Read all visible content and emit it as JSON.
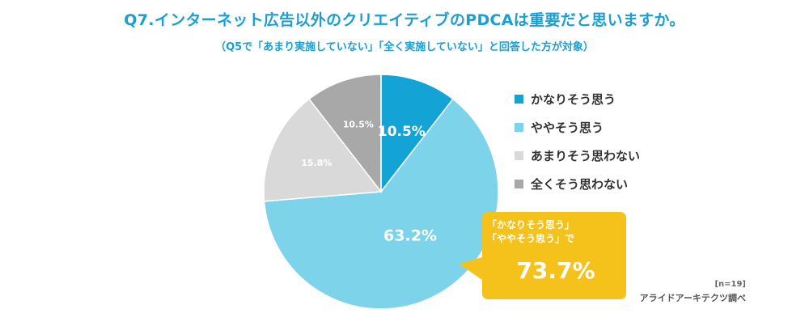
{
  "header": {
    "title": "Q7.インターネット広告以外のクリエイティブのPDCAは重要だと思いますか。",
    "subtitle": "（Q5で「あまり実施していない」「全く実施していない」と回答した方が対象）"
  },
  "chart_data": {
    "type": "pie",
    "title": "Q7.インターネット広告以外のクリエイティブのPDCAは重要だと思いますか。",
    "start": "12 o'clock, clockwise",
    "slices": [
      {
        "label": "かなりそう思う",
        "value": 10.5,
        "value_label": "10.5%",
        "color": "#13a3d5"
      },
      {
        "label": "ややそう思う",
        "value": 63.2,
        "value_label": "63.2%",
        "color": "#7dd4ea"
      },
      {
        "label": "あまりそう思わない",
        "value": 15.8,
        "value_label": "15.8%",
        "color": "#d9d9d9"
      },
      {
        "label": "全くそう思わない",
        "value": 10.5,
        "value_label": "10.5%",
        "color": "#a8a8a9"
      }
    ]
  },
  "callout": {
    "line1": "「かなりそう思う」",
    "line2": "「ややそう思う」で",
    "value": "73.7%",
    "color": "#f4c21a"
  },
  "footer": {
    "sample": "[n=19]",
    "source": "アライドアーキテクツ調べ"
  }
}
